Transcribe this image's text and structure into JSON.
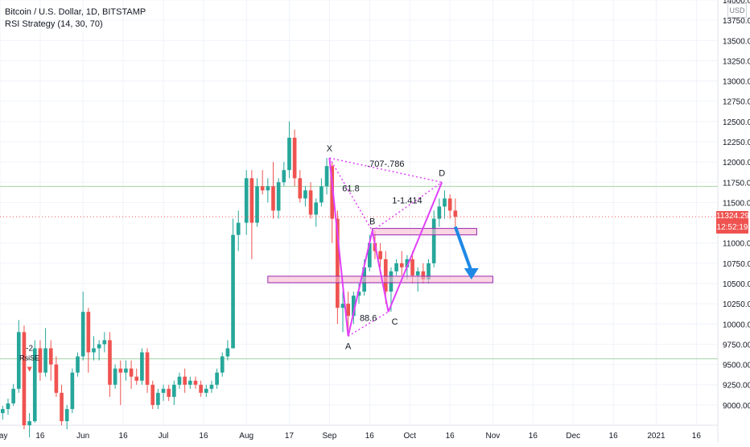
{
  "chart_data": {
    "type": "candlestick",
    "symbol_line": "Bitcoin / U.S. Dollar, 1D, BITSTAMP",
    "indicator_line": "RSI Strategy (14, 30, 70)",
    "currency": "USD",
    "ylim": [
      8750,
      14000
    ],
    "y_ticks": [
      {
        "v": 14000,
        "label": "14000.00"
      },
      {
        "v": 13750,
        "label": "13750.00"
      },
      {
        "v": 13500,
        "label": "13500.00"
      },
      {
        "v": 13250,
        "label": "13250.00"
      },
      {
        "v": 13000,
        "label": "13000.00"
      },
      {
        "v": 12750,
        "label": "12750.00"
      },
      {
        "v": 12500,
        "label": "12500.00"
      },
      {
        "v": 12250,
        "label": "12250.00"
      },
      {
        "v": 12000,
        "label": "12000.00"
      },
      {
        "v": 11750,
        "label": "11750.00"
      },
      {
        "v": 11500,
        "label": "11500.00"
      },
      {
        "v": 11000,
        "label": "11000.00"
      },
      {
        "v": 10750,
        "label": "10750.00"
      },
      {
        "v": 10500,
        "label": "10500.00"
      },
      {
        "v": 10250,
        "label": "10250.00"
      },
      {
        "v": 10000,
        "label": "10000.00"
      },
      {
        "v": 9750,
        "label": "9750.00"
      },
      {
        "v": 9500,
        "label": "9500.00"
      },
      {
        "v": 9250,
        "label": "9250.00"
      },
      {
        "v": 9000,
        "label": "9000.00"
      }
    ],
    "x_range": [
      "2020-05-01",
      "2021-01-24"
    ],
    "x_ticks": [
      {
        "date": "2020-05-01",
        "label": "May"
      },
      {
        "date": "2020-05-16",
        "label": "16"
      },
      {
        "date": "2020-06-01",
        "label": "Jun"
      },
      {
        "date": "2020-06-16",
        "label": "16"
      },
      {
        "date": "2020-07-01",
        "label": "Jul"
      },
      {
        "date": "2020-07-16",
        "label": "16"
      },
      {
        "date": "2020-08-01",
        "label": "Aug"
      },
      {
        "date": "2020-08-17",
        "label": "17"
      },
      {
        "date": "2020-09-01",
        "label": "Sep"
      },
      {
        "date": "2020-09-16",
        "label": "16"
      },
      {
        "date": "2020-10-01",
        "label": "Oct"
      },
      {
        "date": "2020-10-16",
        "label": "16"
      },
      {
        "date": "2020-11-01",
        "label": "Nov"
      },
      {
        "date": "2020-11-16",
        "label": "16"
      },
      {
        "date": "2020-12-01",
        "label": "Dec"
      },
      {
        "date": "2020-12-16",
        "label": "16"
      },
      {
        "date": "2021-01-01",
        "label": "2021"
      },
      {
        "date": "2021-01-16",
        "label": "16"
      }
    ],
    "last_price": {
      "value": 11324.29,
      "label": "11324.29",
      "countdown": "12:52:19"
    },
    "ohlc": [
      [
        "2020-05-02",
        8900,
        8990,
        8820,
        8950
      ],
      [
        "2020-05-04",
        8950,
        9080,
        8880,
        9020
      ],
      [
        "2020-05-06",
        9020,
        9260,
        8990,
        9200
      ],
      [
        "2020-05-08",
        9200,
        10050,
        9150,
        9900
      ],
      [
        "2020-05-10",
        9900,
        9980,
        8700,
        8750
      ],
      [
        "2020-05-12",
        8750,
        8900,
        8600,
        8800
      ],
      [
        "2020-05-14",
        8800,
        9800,
        8780,
        9700
      ],
      [
        "2020-05-16",
        9700,
        9800,
        9300,
        9400
      ],
      [
        "2020-05-18",
        9400,
        9950,
        9350,
        9700
      ],
      [
        "2020-05-20",
        9700,
        9800,
        9300,
        9500
      ],
      [
        "2020-05-22",
        9500,
        9600,
        9100,
        9150
      ],
      [
        "2020-05-24",
        9150,
        9250,
        8750,
        8800
      ],
      [
        "2020-05-26",
        8800,
        9000,
        8700,
        8950
      ],
      [
        "2020-05-28",
        8950,
        9450,
        8900,
        9400
      ],
      [
        "2020-05-30",
        9400,
        9650,
        9350,
        9600
      ],
      [
        "2020-06-01",
        9600,
        10400,
        9550,
        10150
      ],
      [
        "2020-06-03",
        10150,
        10200,
        9400,
        9650
      ],
      [
        "2020-06-05",
        9650,
        9850,
        9550,
        9700
      ],
      [
        "2020-06-07",
        9700,
        9800,
        9550,
        9750
      ],
      [
        "2020-06-09",
        9750,
        9900,
        9650,
        9800
      ],
      [
        "2020-06-11",
        9800,
        9900,
        9100,
        9250
      ],
      [
        "2020-06-13",
        9250,
        9500,
        9200,
        9450
      ],
      [
        "2020-06-15",
        9450,
        9550,
        9000,
        9400
      ],
      [
        "2020-06-17",
        9400,
        9550,
        9300,
        9450
      ],
      [
        "2020-06-19",
        9450,
        9550,
        9200,
        9350
      ],
      [
        "2020-06-21",
        9350,
        9450,
        9250,
        9300
      ],
      [
        "2020-06-23",
        9300,
        9700,
        9250,
        9650
      ],
      [
        "2020-06-25",
        9650,
        9700,
        9150,
        9250
      ],
      [
        "2020-06-27",
        9250,
        9300,
        8950,
        9000
      ],
      [
        "2020-06-29",
        9000,
        9200,
        8950,
        9150
      ],
      [
        "2020-07-01",
        9150,
        9250,
        9050,
        9200
      ],
      [
        "2020-07-03",
        9200,
        9250,
        9050,
        9100
      ],
      [
        "2020-07-05",
        9100,
        9300,
        9000,
        9250
      ],
      [
        "2020-07-07",
        9250,
        9400,
        9200,
        9350
      ],
      [
        "2020-07-09",
        9350,
        9450,
        9150,
        9250
      ],
      [
        "2020-07-11",
        9250,
        9350,
        9200,
        9300
      ],
      [
        "2020-07-13",
        9300,
        9350,
        9200,
        9250
      ],
      [
        "2020-07-15",
        9250,
        9300,
        9100,
        9150
      ],
      [
        "2020-07-17",
        9150,
        9250,
        9100,
        9200
      ],
      [
        "2020-07-19",
        9200,
        9300,
        9150,
        9250
      ],
      [
        "2020-07-21",
        9250,
        9450,
        9200,
        9400
      ],
      [
        "2020-07-23",
        9400,
        9650,
        9350,
        9600
      ],
      [
        "2020-07-25",
        9600,
        9800,
        9550,
        9700
      ],
      [
        "2020-07-27",
        9700,
        11300,
        9700,
        11100
      ],
      [
        "2020-07-29",
        11100,
        11400,
        10900,
        11250
      ],
      [
        "2020-08-01",
        11250,
        11900,
        11100,
        11800
      ],
      [
        "2020-08-03",
        11800,
        11900,
        10800,
        11250
      ],
      [
        "2020-08-05",
        11250,
        11800,
        11200,
        11700
      ],
      [
        "2020-08-07",
        11700,
        11900,
        11600,
        11650
      ],
      [
        "2020-08-09",
        11650,
        11800,
        11500,
        11700
      ],
      [
        "2020-08-11",
        11700,
        12000,
        11300,
        11400
      ],
      [
        "2020-08-13",
        11400,
        11800,
        11300,
        11750
      ],
      [
        "2020-08-15",
        11750,
        12000,
        11700,
        11900
      ],
      [
        "2020-08-17",
        11900,
        12500,
        11800,
        12300
      ],
      [
        "2020-08-19",
        12300,
        12400,
        11700,
        11800
      ],
      [
        "2020-08-21",
        11800,
        11900,
        11500,
        11550
      ],
      [
        "2020-08-23",
        11550,
        11700,
        11450,
        11650
      ],
      [
        "2020-08-25",
        11650,
        11750,
        11300,
        11350
      ],
      [
        "2020-08-27",
        11350,
        11550,
        11200,
        11500
      ],
      [
        "2020-08-29",
        11500,
        11800,
        11450,
        11700
      ],
      [
        "2020-08-31",
        11700,
        12050,
        11600,
        11950
      ],
      [
        "2020-09-02",
        11950,
        12000,
        11000,
        11300
      ],
      [
        "2020-09-04",
        11300,
        11400,
        10000,
        10200
      ],
      [
        "2020-09-06",
        10200,
        10400,
        9900,
        10250
      ],
      [
        "2020-09-08",
        10250,
        10400,
        9900,
        10100
      ],
      [
        "2020-09-10",
        10100,
        10400,
        10000,
        10350
      ],
      [
        "2020-09-12",
        10350,
        10500,
        10250,
        10400
      ],
      [
        "2020-09-14",
        10400,
        10800,
        10350,
        10700
      ],
      [
        "2020-09-16",
        10700,
        11100,
        10650,
        11000
      ],
      [
        "2020-09-18",
        11000,
        11150,
        10800,
        10900
      ],
      [
        "2020-09-20",
        10900,
        11000,
        10700,
        10800
      ],
      [
        "2020-09-22",
        10800,
        10900,
        10250,
        10400
      ],
      [
        "2020-09-24",
        10400,
        10700,
        10150,
        10650
      ],
      [
        "2020-09-26",
        10650,
        10800,
        10600,
        10750
      ],
      [
        "2020-09-28",
        10750,
        10900,
        10600,
        10700
      ],
      [
        "2020-09-30",
        10700,
        10850,
        10550,
        10800
      ],
      [
        "2020-10-02",
        10800,
        10900,
        10500,
        10600
      ],
      [
        "2020-10-04",
        10600,
        10700,
        10400,
        10650
      ],
      [
        "2020-10-06",
        10650,
        10750,
        10500,
        10550
      ],
      [
        "2020-10-08",
        10550,
        10800,
        10500,
        10750
      ],
      [
        "2020-10-10",
        10750,
        11400,
        10700,
        11300
      ],
      [
        "2020-10-12",
        11300,
        11550,
        11200,
        11450
      ],
      [
        "2020-10-14",
        11450,
        11650,
        11300,
        11550
      ],
      [
        "2020-10-16",
        11550,
        11600,
        11300,
        11400
      ],
      [
        "2020-10-18",
        11400,
        11550,
        11200,
        11324.29
      ]
    ],
    "pattern": {
      "points": [
        {
          "label": "X",
          "date": "2020-09-01",
          "value": 12050
        },
        {
          "label": "A",
          "date": "2020-09-08",
          "value": 9850
        },
        {
          "label": "B",
          "date": "2020-09-17",
          "value": 11150
        },
        {
          "label": "C",
          "date": "2020-09-23",
          "value": 10150
        },
        {
          "label": "D",
          "date": "2020-10-13",
          "value": 11750
        }
      ],
      "ratios": [
        {
          "label": "61.8",
          "from": "X",
          "to": "B"
        },
        {
          "label": ".707-.786",
          "from": "X",
          "to": "D"
        },
        {
          "label": "1-1.414",
          "from": "B",
          "to": "D"
        },
        {
          "label": "88.6",
          "from": "A",
          "to": "C"
        }
      ]
    },
    "zones": [
      {
        "from": "2020-09-17",
        "to": "2020-10-26",
        "low": 11100,
        "high": 11180
      },
      {
        "from": "2020-08-09",
        "to": "2020-11-01",
        "low": 10510,
        "high": 10590
      }
    ],
    "horizontal_lines": [
      11700,
      9570
    ],
    "arrow": {
      "from_date": "2020-10-18",
      "from_value": 11200,
      "to_date": "2020-10-24",
      "to_value": 10550
    },
    "signals": [
      {
        "date": "2020-05-12",
        "value": 9550,
        "label": "-2",
        "sublabel": "RsiSE"
      }
    ],
    "colors": {
      "up": "#26a69a",
      "down": "#ef5350",
      "pattern": "#e040fb",
      "zone_fill": "#f8bbd0",
      "zone_stroke": "#9c27b0",
      "hline": "#a5d6a7",
      "arrow": "#1e88e5"
    }
  }
}
